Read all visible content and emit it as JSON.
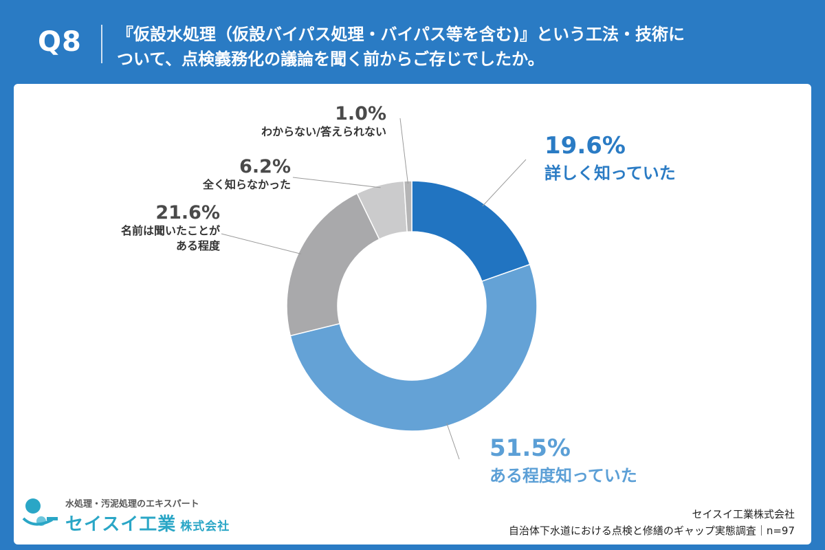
{
  "header": {
    "q_num": "Q8",
    "question_line1": "『仮設水処理（仮設バイパス処理・バイパス等を含む)』という工法・技術に",
    "question_line2": "ついて、点検義務化の議論を聞く前からご存じでしたか。"
  },
  "chart_data": {
    "type": "pie",
    "donut": true,
    "categories": [
      "詳しく知っていた",
      "ある程度知っていた",
      "名前は聞いたことがある程度",
      "全く知らなかった",
      "わからない/答えられない"
    ],
    "values": [
      19.6,
      51.5,
      21.6,
      6.2,
      1.0
    ],
    "value_labels": [
      "19.6%",
      "51.5%",
      "21.6%",
      "6.2%",
      "1.0%"
    ],
    "colors": [
      "#2174c1",
      "#64a2d6",
      "#a9a9ab",
      "#cbcbcc",
      "#b5b5b6"
    ],
    "start_angle_deg": 0,
    "direction": "clockwise"
  },
  "labels": {
    "s0_pct": "19.6%",
    "s0_cat": "詳しく知っていた",
    "s1_pct": "51.5%",
    "s1_cat": "ある程度知っていた",
    "s2_pct": "21.6%",
    "s2_cat_line1": "名前は聞いたことが",
    "s2_cat_line2": "ある程度",
    "s3_pct": "6.2%",
    "s3_cat": "全く知らなかった",
    "s4_pct": "1.0%",
    "s4_cat": "わからない/答えられない"
  },
  "logo": {
    "tagline": "水処理・汚泥処理のエキスパート",
    "name": "セイスイ工業",
    "suffix": "株式会社"
  },
  "footer": {
    "company": "セイスイ工業株式会社",
    "survey": "自治体下水道における点検と修繕のギャップ実態調査｜n=97"
  },
  "colors": {
    "header_bg": "#2a7bc4",
    "panel_bg": "#ffffff",
    "logo": "#2aa6c6"
  }
}
